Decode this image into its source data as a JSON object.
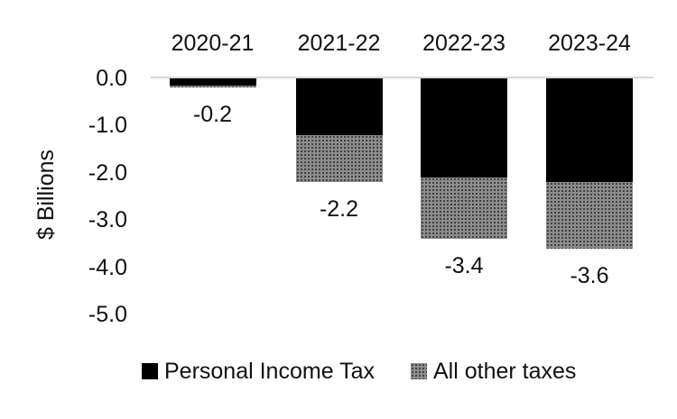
{
  "chart_data": {
    "type": "bar",
    "stacked": true,
    "orientation": "vertical",
    "categories": [
      "2020-21",
      "2021-22",
      "2022-23",
      "2023-24"
    ],
    "series": [
      {
        "name": "Personal Income Tax",
        "color": "#000000",
        "values": [
          -0.15,
          -1.2,
          -2.1,
          -2.2
        ]
      },
      {
        "name": "All other taxes",
        "color": "#8c8c8c",
        "values": [
          -0.05,
          -1.0,
          -1.3,
          -1.4
        ]
      }
    ],
    "total_labels": [
      "-0.2",
      "-2.2",
      "-3.4",
      "-3.6"
    ],
    "ylabel": "$ Billions",
    "yticks": [
      "0.0",
      "-1.0",
      "-2.0",
      "-3.0",
      "-4.0",
      "-5.0"
    ],
    "ylim": [
      -5.0,
      0.0
    ],
    "grid": "zero-line-only",
    "zero_line_color": "#d6d6d6",
    "legend_position": "bottom",
    "background": "#ffffff"
  }
}
